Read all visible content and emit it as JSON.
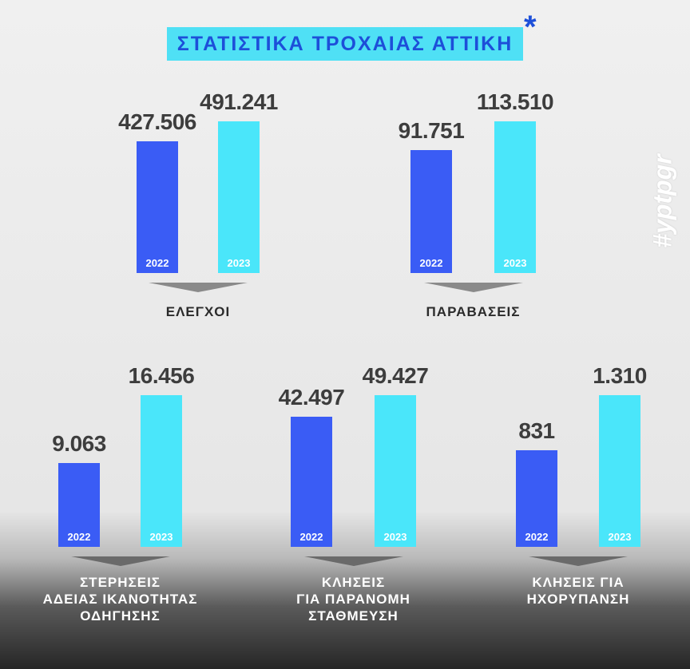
{
  "title": "ΣΤΑΤΙΣΤΙΚΑ ΤΡΟΧΑΙΑΣ ΑΤΤΙΚΗ",
  "title_mark": "*",
  "hashtag": "#yptpgr",
  "colors": {
    "bar_2022": "#3a5cf5",
    "bar_2023": "#4ae6fa",
    "title_background": "#4fe0f5",
    "title_text": "#1d4fd9"
  },
  "chart_data": [
    {
      "type": "bar",
      "categories": [
        "2022",
        "2023"
      ],
      "values": [
        427506,
        491241
      ],
      "value_labels": [
        "427.506",
        "491.241"
      ],
      "xlabel": "ΕΛΕΓΧΟΙ"
    },
    {
      "type": "bar",
      "categories": [
        "2022",
        "2023"
      ],
      "values": [
        91751,
        113510
      ],
      "value_labels": [
        "91.751",
        "113.510"
      ],
      "xlabel": "ΠΑΡΑΒΑΣΕΙΣ"
    },
    {
      "type": "bar",
      "categories": [
        "2022",
        "2023"
      ],
      "values": [
        9063,
        16456
      ],
      "value_labels": [
        "9.063",
        "16.456"
      ],
      "xlabel": "ΣΤΕΡΗΣΕΙΣ ΑΔΕΙΑΣ ΙΚΑΝΟΤΗΤΑΣ ΟΔΗΓΗΣΗΣ",
      "xlabel_lines": [
        "ΣΤΕΡΗΣΕΙΣ",
        "ΑΔΕΙΑΣ ΙΚΑΝΟΤΗΤΑΣ",
        "ΟΔΗΓΗΣΗΣ"
      ]
    },
    {
      "type": "bar",
      "categories": [
        "2022",
        "2023"
      ],
      "values": [
        42497,
        49427
      ],
      "value_labels": [
        "42.497",
        "49.427"
      ],
      "xlabel": "ΚΛΗΣΕΙΣ ΓΙΑ ΠΑΡΑΝΟΜΗ ΣΤΑΘΜΕΥΣΗ",
      "xlabel_lines": [
        "ΚΛΗΣΕΙΣ",
        "ΓΙΑ ΠΑΡΑΝΟΜΗ",
        "ΣΤΑΘΜΕΥΣΗ"
      ]
    },
    {
      "type": "bar",
      "categories": [
        "2022",
        "2023"
      ],
      "values": [
        831,
        1310
      ],
      "value_labels": [
        "831",
        "1.310"
      ],
      "xlabel": "ΚΛΗΣΕΙΣ ΓΙΑ ΗΧΟΡΥΠΑΝΣΗ",
      "xlabel_lines": [
        "ΚΛΗΣΕΙΣ ΓΙΑ",
        "ΗΧΟΡΥΠΑΝΣΗ"
      ]
    }
  ]
}
